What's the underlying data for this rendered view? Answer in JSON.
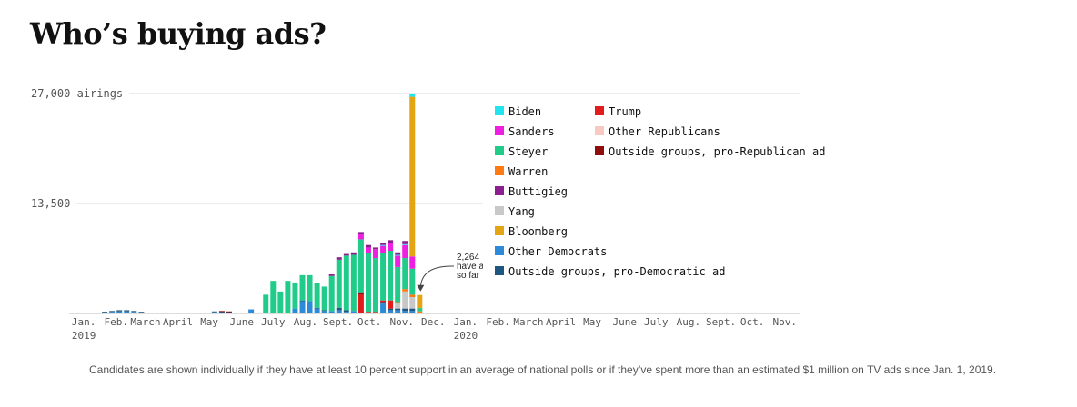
{
  "title": "Who’s buying ads?",
  "note": "Candidates are shown individually if they have at least 10 percent support in an average of national polls or if they’ve spent more than an estimated $1 million on TV ads since Jan. 1, 2019.",
  "colors": {
    "Biden": "#22e3ee",
    "Sanders": "#ee1fe0",
    "Steyer": "#21cc8a",
    "Warren": "#ff7a12",
    "Buttigieg": "#8b1f8f",
    "Yang": "#c8c8c8",
    "Bloomberg": "#e3a514",
    "Other Democrats": "#2d8ad8",
    "Outside groups, pro-Democratic ad": "#1f567f",
    "Trump": "#e21b1b",
    "Other Republicans": "#f7c9c0",
    "Outside groups, pro-Republican ad": "#8e0e0e"
  },
  "chart_data": {
    "type": "bar",
    "stacked": true,
    "title": "Who’s buying ads?",
    "xlabel": "",
    "ylabel": "",
    "ylim": [
      0,
      27000
    ],
    "y_ticks": [
      {
        "value": 27000,
        "label": "27,000 airings"
      },
      {
        "value": 13500,
        "label": "13,500"
      }
    ],
    "x_range": [
      "2019-01-01",
      "2020-11-30"
    ],
    "x_ticks": [
      {
        "date": "2019-01-15",
        "label": "Jan.",
        "sub": "2019"
      },
      {
        "date": "2019-02-15",
        "label": "Feb."
      },
      {
        "date": "2019-03-15",
        "label": "March"
      },
      {
        "date": "2019-04-15",
        "label": "April"
      },
      {
        "date": "2019-05-15",
        "label": "May"
      },
      {
        "date": "2019-06-15",
        "label": "June"
      },
      {
        "date": "2019-07-15",
        "label": "July"
      },
      {
        "date": "2019-08-15",
        "label": "Aug."
      },
      {
        "date": "2019-09-15",
        "label": "Sept."
      },
      {
        "date": "2019-10-15",
        "label": "Oct."
      },
      {
        "date": "2019-11-15",
        "label": "Nov."
      },
      {
        "date": "2019-12-15",
        "label": "Dec."
      },
      {
        "date": "2020-01-15",
        "label": "Jan.",
        "sub": "2020"
      },
      {
        "date": "2020-02-15",
        "label": "Feb."
      },
      {
        "date": "2020-03-15",
        "label": "March"
      },
      {
        "date": "2020-04-15",
        "label": "April"
      },
      {
        "date": "2020-05-15",
        "label": "May"
      },
      {
        "date": "2020-06-15",
        "label": "June"
      },
      {
        "date": "2020-07-15",
        "label": "July"
      },
      {
        "date": "2020-08-15",
        "label": "Aug."
      },
      {
        "date": "2020-09-15",
        "label": "Sept."
      },
      {
        "date": "2020-10-15",
        "label": "Oct."
      },
      {
        "date": "2020-11-15",
        "label": "Nov."
      }
    ],
    "legend": {
      "placement": "top-right",
      "columns": [
        [
          "Biden",
          "Sanders",
          "Steyer",
          "Warren",
          "Buttigieg",
          "Yang",
          "Bloomberg",
          "Other Democrats",
          "Outside groups, pro-Democratic ad"
        ],
        [
          "Trump",
          "Other Republicans",
          "Outside groups, pro-Republican ad"
        ]
      ]
    },
    "annotation": {
      "lines": [
        "2,264",
        "have a",
        "so far"
      ],
      "date": "2019-12-02",
      "value": 2264
    },
    "weeks": [
      {
        "date": "2019-02-04",
        "values": {
          "Other Democrats": 150,
          "Outside groups, pro-Democratic ad": 60
        }
      },
      {
        "date": "2019-02-11",
        "values": {
          "Other Democrats": 200,
          "Outside groups, pro-Democratic ad": 100
        }
      },
      {
        "date": "2019-02-18",
        "values": {
          "Other Democrats": 250,
          "Outside groups, pro-Democratic ad": 150
        }
      },
      {
        "date": "2019-02-25",
        "values": {
          "Other Democrats": 250,
          "Outside groups, pro-Democratic ad": 150
        }
      },
      {
        "date": "2019-03-04",
        "values": {
          "Other Democrats": 200,
          "Outside groups, pro-Democratic ad": 100
        }
      },
      {
        "date": "2019-03-11",
        "values": {
          "Other Democrats": 100,
          "Outside groups, pro-Democratic ad": 100
        }
      },
      {
        "date": "2019-05-20",
        "values": {
          "Other Democrats": 150,
          "Outside groups, pro-Democratic ad": 100
        }
      },
      {
        "date": "2019-05-27",
        "values": {
          "Outside groups, pro-Democratic ad": 250,
          "Outside groups, pro-Republican ad": 50
        }
      },
      {
        "date": "2019-06-03",
        "values": {
          "Outside groups, pro-Democratic ad": 200,
          "Outside groups, pro-Republican ad": 50
        }
      },
      {
        "date": "2019-06-24",
        "values": {
          "Other Democrats": 500
        }
      },
      {
        "date": "2019-07-01",
        "values": {
          "Other Democrats": 100
        }
      },
      {
        "date": "2019-07-08",
        "values": {
          "Steyer": 2300
        }
      },
      {
        "date": "2019-07-15",
        "values": {
          "Steyer": 3900,
          "Other Democrats": 100
        }
      },
      {
        "date": "2019-07-22",
        "values": {
          "Steyer": 2600,
          "Other Democrats": 100
        }
      },
      {
        "date": "2019-07-29",
        "values": {
          "Steyer": 3900,
          "Other Democrats": 100
        }
      },
      {
        "date": "2019-08-05",
        "values": {
          "Steyer": 3200,
          "Other Democrats": 600
        }
      },
      {
        "date": "2019-08-12",
        "values": {
          "Steyer": 3100,
          "Other Democrats": 1500,
          "Outside groups, pro-Democratic ad": 100
        }
      },
      {
        "date": "2019-08-19",
        "values": {
          "Steyer": 3200,
          "Other Democrats": 1500
        }
      },
      {
        "date": "2019-08-26",
        "values": {
          "Steyer": 3000,
          "Other Democrats": 600,
          "Outside groups, pro-Democratic ad": 100
        }
      },
      {
        "date": "2019-09-02",
        "values": {
          "Steyer": 2900,
          "Other Democrats": 300,
          "Outside groups, pro-Democratic ad": 100
        }
      },
      {
        "date": "2019-09-09",
        "values": {
          "Steyer": 4300,
          "Other Democrats": 300,
          "Buttigieg": 200
        }
      },
      {
        "date": "2019-09-16",
        "values": {
          "Steyer": 5900,
          "Other Democrats": 400,
          "Outside groups, pro-Democratic ad": 300,
          "Buttigieg": 300
        }
      },
      {
        "date": "2019-09-23",
        "values": {
          "Steyer": 6700,
          "Outside groups, pro-Democratic ad": 200,
          "Other Democrats": 200,
          "Buttigieg": 200
        }
      },
      {
        "date": "2019-09-30",
        "values": {
          "Steyer": 6900,
          "Other Democrats": 300,
          "Buttigieg": 300
        }
      },
      {
        "date": "2019-10-07",
        "values": {
          "Trump": 2300,
          "Outside groups, pro-Republican ad": 300,
          "Steyer": 6500,
          "Sanders": 600,
          "Buttigieg": 300
        }
      },
      {
        "date": "2019-10-14",
        "values": {
          "Trump": 100,
          "Outside groups, pro-Democratic ad": 100,
          "Steyer": 7200,
          "Sanders": 700,
          "Buttigieg": 300
        }
      },
      {
        "date": "2019-10-21",
        "values": {
          "Trump": 100,
          "Other Democrats": 100,
          "Steyer": 6600,
          "Sanders": 1100,
          "Buttigieg": 200
        }
      },
      {
        "date": "2019-10-28",
        "values": {
          "Other Democrats": 1200,
          "Outside groups, pro-Democratic ad": 200,
          "Trump": 200,
          "Steyer": 5800,
          "Sanders": 900,
          "Biden": 100,
          "Buttigieg": 300
        }
      },
      {
        "date": "2019-11-04",
        "values": {
          "Trump": 1000,
          "Other Democrats": 400,
          "Outside groups, pro-Democratic ad": 200,
          "Steyer": 6100,
          "Sanders": 900,
          "Biden": 100,
          "Buttigieg": 300
        }
      },
      {
        "date": "2019-11-11",
        "values": {
          "Other Democrats": 400,
          "Outside groups, pro-Democratic ad": 200,
          "Warren": 100,
          "Yang": 700,
          "Steyer": 4300,
          "Sanders": 1400,
          "Biden": 100,
          "Buttigieg": 300
        }
      },
      {
        "date": "2019-11-18",
        "values": {
          "Outside groups, pro-Democratic ad": 300,
          "Other Democrats": 300,
          "Yang": 2100,
          "Warren": 300,
          "Steyer": 3800,
          "Sanders": 1600,
          "Biden": 100,
          "Buttigieg": 400
        }
      },
      {
        "date": "2019-11-25",
        "values": {
          "Outside groups, pro-Democratic ad": 300,
          "Other Democrats": 300,
          "Yang": 1400,
          "Warren": 300,
          "Steyer": 3200,
          "Sanders": 1500,
          "Bloomberg": 19600,
          "Biden": 400
        }
      },
      {
        "date": "2019-12-02",
        "values": {
          "Steyer": 400,
          "Yang": 100,
          "Bloomberg": 1600,
          "Warren": 164
        }
      }
    ]
  }
}
